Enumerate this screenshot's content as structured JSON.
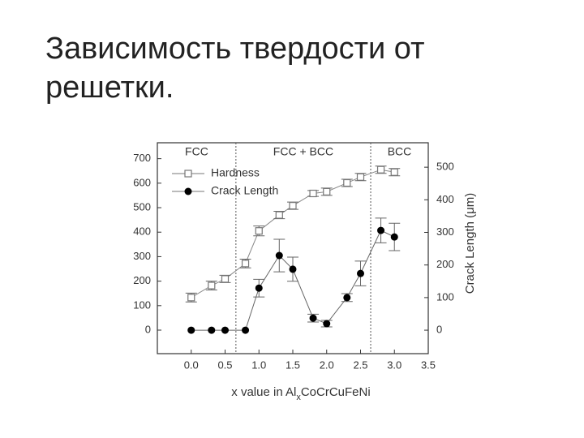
{
  "title": "Зависимость твердости от решетки.",
  "chart_data": {
    "type": "line",
    "x": [
      0.0,
      0.3,
      0.5,
      0.8,
      1.0,
      1.3,
      1.5,
      1.8,
      2.0,
      2.3,
      2.5,
      2.8,
      3.0
    ],
    "series": [
      {
        "name": "Hardness",
        "color": "#777777",
        "marker": "open-square",
        "axis": "y",
        "values": [
          133,
          182,
          209,
          272,
          405,
          470,
          508,
          558,
          565,
          601,
          625,
          655,
          645
        ],
        "errors": [
          18,
          18,
          15,
          18,
          20,
          15,
          15,
          12,
          15,
          15,
          15,
          15,
          15
        ]
      },
      {
        "name": "Crack Length",
        "color": "#000000",
        "marker": "filled-circle",
        "axis": "y2",
        "values": [
          0,
          0,
          0,
          0,
          129,
          229,
          187,
          37,
          20,
          100,
          174,
          306,
          286
        ],
        "errors": [
          0,
          0,
          0,
          0,
          27,
          50,
          37,
          12,
          10,
          12,
          38,
          38,
          42
        ]
      }
    ],
    "xlabel_parts": [
      "x value in Al",
      "x",
      "CoCrCuFeNi"
    ],
    "y2label": "Crack Length (μm)",
    "xlim": [
      -0.5,
      3.5
    ],
    "xticks": [
      {
        "value": 0,
        "label": "0.0"
      },
      0.5,
      {
        "value": 1,
        "label": "1.0"
      },
      1.5,
      {
        "value": 2,
        "label": "2.0"
      },
      2.5,
      {
        "value": 3,
        "label": "3.0"
      },
      3.5
    ],
    "ylim": [
      -96,
      765
    ],
    "yticks": [
      0,
      100,
      200,
      300,
      400,
      500,
      600,
      700
    ],
    "y2lim": [
      -72,
      575
    ],
    "y2ticks": [
      0,
      100,
      200,
      300,
      400,
      500
    ],
    "boundaries": [
      0.66,
      2.65
    ],
    "regions": [
      "FCC",
      "FCC + BCC",
      "BCC"
    ],
    "legend": "upper-left"
  }
}
